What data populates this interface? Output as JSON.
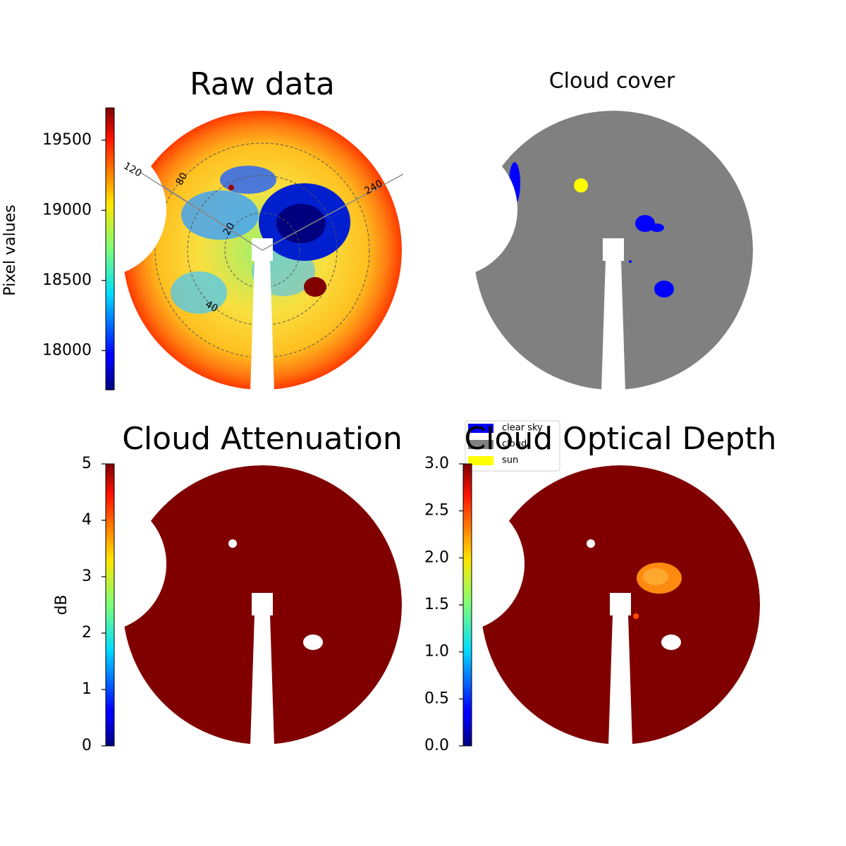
{
  "chart_data": [
    {
      "type": "image",
      "title": "Raw data",
      "colorbar_label": "Pixel values",
      "colormap": "jet",
      "clim": [
        17720,
        19730
      ],
      "cticks": [
        18000,
        18500,
        19000,
        19500
      ],
      "annotations": [
        "120",
        "240",
        "80",
        "20",
        "40"
      ]
    },
    {
      "type": "image",
      "title": "Cloud cover",
      "legend": [
        {
          "name": "clear sky",
          "color": "#0000ff"
        },
        {
          "name": "cloud",
          "color": "#808080"
        },
        {
          "name": "sun",
          "color": "#ffff00"
        }
      ]
    },
    {
      "type": "image",
      "title": "Cloud Attenuation",
      "colorbar_label": "dB",
      "colormap": "jet",
      "clim": [
        0,
        5
      ],
      "cticks": [
        0,
        1,
        2,
        3,
        4,
        5
      ]
    },
    {
      "type": "image",
      "title": "Cloud Optical Depth",
      "colormap": "jet",
      "clim": [
        0,
        3
      ],
      "cticks": [
        {
          "value": 0,
          "label": "0.0"
        },
        {
          "value": 0.5,
          "label": "0.5"
        },
        {
          "value": 1,
          "label": "1.0"
        },
        {
          "value": 1.5,
          "label": "1.5"
        },
        {
          "value": 2,
          "label": "2.0"
        },
        {
          "value": 2.5,
          "label": "2.5"
        },
        {
          "value": 3,
          "label": "3.0"
        }
      ]
    }
  ]
}
